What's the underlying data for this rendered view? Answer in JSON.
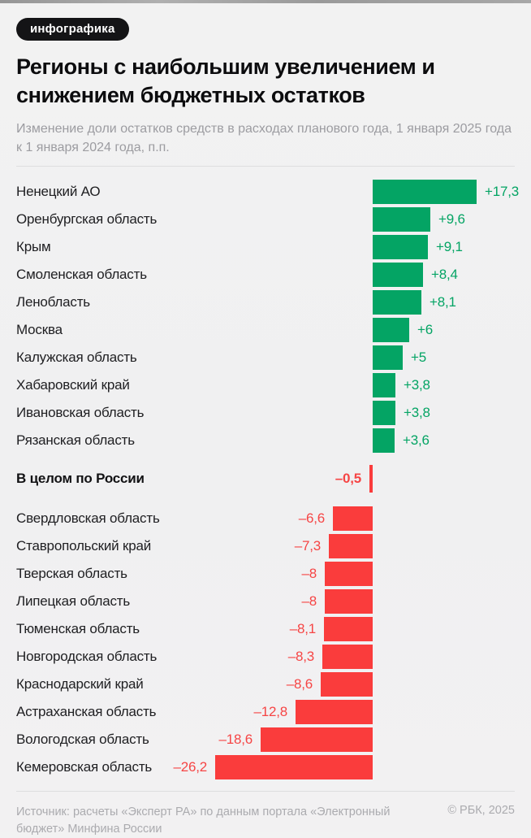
{
  "badge": "инфографика",
  "title": "Регионы с наибольшим увеличением и снижением бюджетных остатков",
  "subtitle": "Изменение доли остатков средств в расходах планового года, 1 января 2025 года к 1 января 2024 года, п.п.",
  "footer": {
    "source": "Источник: расчеты «Эксперт РА» по данным портала «Электронный бюджет» Минфина России",
    "copyright": "© РБК, 2025"
  },
  "colors": {
    "positive_bar": "#04a464",
    "negative_bar": "#fa3c3c",
    "negative_text": "#f64545",
    "background": "#f1f1f2"
  },
  "chart_data": {
    "type": "bar",
    "orientation": "horizontal",
    "unit": "п.п.",
    "value_note": "change in share of fund balances, 1 Jan 2025 vs 1 Jan 2024, percentage points",
    "positive": [
      {
        "label": "Ненецкий АО",
        "value": 17.3,
        "display": "+17,3"
      },
      {
        "label": "Оренбургская область",
        "value": 9.6,
        "display": "+9,6"
      },
      {
        "label": "Крым",
        "value": 9.1,
        "display": "+9,1"
      },
      {
        "label": "Смоленская область",
        "value": 8.4,
        "display": "+8,4"
      },
      {
        "label": "Ленобласть",
        "value": 8.1,
        "display": "+8,1"
      },
      {
        "label": "Москва",
        "value": 6,
        "display": "+6"
      },
      {
        "label": "Калужская область",
        "value": 5,
        "display": "+5"
      },
      {
        "label": "Хабаровский край",
        "value": 3.8,
        "display": "+3,8"
      },
      {
        "label": "Ивановская область",
        "value": 3.8,
        "display": "+3,8"
      },
      {
        "label": "Рязанская область",
        "value": 3.6,
        "display": "+3,6"
      }
    ],
    "benchmark": {
      "label": "В целом по России",
      "value": -0.5,
      "display": "–0,5"
    },
    "negative": [
      {
        "label": "Свердловская область",
        "value": -6.6,
        "display": "–6,6"
      },
      {
        "label": "Ставропольский край",
        "value": -7.3,
        "display": "–7,3"
      },
      {
        "label": "Тверская область",
        "value": -8,
        "display": "–8"
      },
      {
        "label": "Липецкая область",
        "value": -8,
        "display": "–8"
      },
      {
        "label": "Тюменская область",
        "value": -8.1,
        "display": "–8,1"
      },
      {
        "label": "Новгородская область",
        "value": -8.3,
        "display": "–8,3"
      },
      {
        "label": "Краснодарский край",
        "value": -8.6,
        "display": "–8,6"
      },
      {
        "label": "Астраханская область",
        "value": -12.8,
        "display": "–12,8"
      },
      {
        "label": "Вологодская область",
        "value": -18.6,
        "display": "–18,6"
      },
      {
        "label": "Кемеровская область",
        "value": -26.2,
        "display": "–26,2"
      }
    ]
  }
}
